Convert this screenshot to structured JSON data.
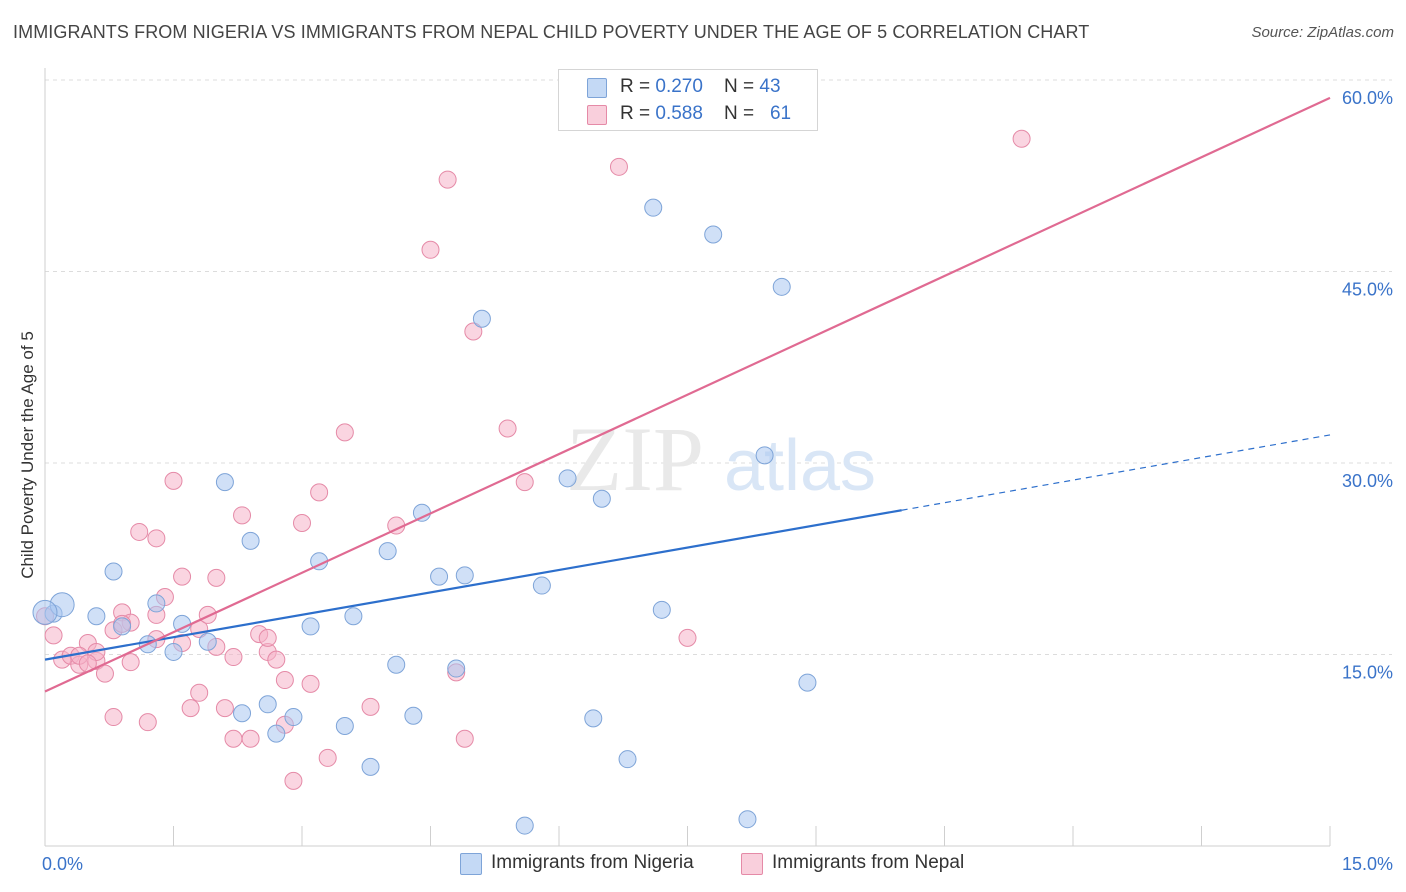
{
  "title": "IMMIGRANTS FROM NIGERIA VS IMMIGRANTS FROM NEPAL CHILD POVERTY UNDER THE AGE OF 5 CORRELATION CHART",
  "source": "Source: ZipAtlas.com",
  "watermark": {
    "zip": "ZIP",
    "atlas": "atlas"
  },
  "legend": {
    "rows": [
      {
        "r_label": "R = ",
        "r_value": "0.270",
        "n_label": "N = ",
        "n_value": "43",
        "color": "#a9c7f0"
      },
      {
        "r_label": "R = ",
        "r_value": "0.588",
        "n_label": "N = ",
        "n_value": "61",
        "color": "#f6b3c8"
      }
    ]
  },
  "chart_data": {
    "type": "scatter",
    "title": "IMMIGRANTS FROM NIGERIA VS IMMIGRANTS FROM NEPAL CHILD POVERTY UNDER THE AGE OF 5 CORRELATION CHART",
    "xlabel": "",
    "ylabel": "Child Poverty Under the Age of 5",
    "xlim": [
      0,
      15
    ],
    "ylim": [
      0,
      60
    ],
    "x_tick_labels": [
      "0.0%",
      "15.0%"
    ],
    "y_ticks": [
      15,
      30,
      45,
      60
    ],
    "y_tick_labels": [
      "15.0%",
      "30.0%",
      "45.0%",
      "60.0%"
    ],
    "grid": "horizontal dashed",
    "legend_position": "top-center",
    "series": [
      {
        "name": "Immigrants from Nigeria",
        "color": "#a9c7f0",
        "stroke": "#7ea4d8",
        "trend_color": "#2d6fcc",
        "trend": {
          "x0": 0.0,
          "y0": 14.6,
          "x1": 10.0,
          "y1": 26.3,
          "dashed_to_x": 15.0,
          "dashed_to_y": 32.2
        },
        "points": [
          [
            0.1,
            18.2
          ],
          [
            0.2,
            18.9
          ],
          [
            0.6,
            18.0
          ],
          [
            0.8,
            21.5
          ],
          [
            0.9,
            17.2
          ],
          [
            1.2,
            15.8
          ],
          [
            1.3,
            19.0
          ],
          [
            1.5,
            15.2
          ],
          [
            1.6,
            17.4
          ],
          [
            1.9,
            16.0
          ],
          [
            2.1,
            28.5
          ],
          [
            2.3,
            10.4
          ],
          [
            2.4,
            23.9
          ],
          [
            2.6,
            11.1
          ],
          [
            2.7,
            8.8
          ],
          [
            2.9,
            10.1
          ],
          [
            3.1,
            17.2
          ],
          [
            3.2,
            22.3
          ],
          [
            3.5,
            9.4
          ],
          [
            3.6,
            18.0
          ],
          [
            3.8,
            6.2
          ],
          [
            4.0,
            23.1
          ],
          [
            4.1,
            14.2
          ],
          [
            4.3,
            10.2
          ],
          [
            4.4,
            26.1
          ],
          [
            4.6,
            21.1
          ],
          [
            4.8,
            13.9
          ],
          [
            4.9,
            21.2
          ],
          [
            5.1,
            41.3
          ],
          [
            5.6,
            1.6
          ],
          [
            5.8,
            20.4
          ],
          [
            6.1,
            28.8
          ],
          [
            6.4,
            10.0
          ],
          [
            6.5,
            27.2
          ],
          [
            6.8,
            6.8
          ],
          [
            7.1,
            50.0
          ],
          [
            7.2,
            18.5
          ],
          [
            7.8,
            47.9
          ],
          [
            8.2,
            2.1
          ],
          [
            8.4,
            30.6
          ],
          [
            8.6,
            43.8
          ],
          [
            8.9,
            12.8
          ],
          [
            0.0,
            18.3
          ]
        ]
      },
      {
        "name": "Immigrants from Nepal",
        "color": "#f6b3c8",
        "stroke": "#e58aa7",
        "trend_color": "#e06a92",
        "trend": {
          "x0": 0.0,
          "y0": 12.1,
          "x1": 15.0,
          "y1": 58.6
        },
        "points": [
          [
            0.0,
            18.0
          ],
          [
            0.1,
            16.5
          ],
          [
            0.2,
            14.6
          ],
          [
            0.3,
            14.9
          ],
          [
            0.4,
            14.2
          ],
          [
            0.5,
            15.9
          ],
          [
            0.6,
            14.5
          ],
          [
            0.6,
            15.2
          ],
          [
            0.7,
            13.5
          ],
          [
            0.8,
            16.9
          ],
          [
            0.8,
            10.1
          ],
          [
            0.9,
            18.3
          ],
          [
            1.0,
            17.5
          ],
          [
            1.0,
            14.4
          ],
          [
            1.1,
            24.6
          ],
          [
            1.2,
            9.7
          ],
          [
            1.3,
            24.1
          ],
          [
            1.3,
            18.1
          ],
          [
            1.4,
            19.5
          ],
          [
            1.5,
            28.6
          ],
          [
            1.6,
            15.9
          ],
          [
            1.6,
            21.1
          ],
          [
            1.7,
            10.8
          ],
          [
            1.8,
            17.0
          ],
          [
            1.8,
            12.0
          ],
          [
            1.9,
            18.1
          ],
          [
            2.0,
            15.6
          ],
          [
            2.0,
            21.0
          ],
          [
            2.1,
            10.8
          ],
          [
            2.2,
            8.4
          ],
          [
            2.2,
            14.8
          ],
          [
            2.3,
            25.9
          ],
          [
            2.4,
            8.4
          ],
          [
            2.5,
            16.6
          ],
          [
            2.6,
            15.2
          ],
          [
            2.6,
            16.3
          ],
          [
            2.7,
            14.6
          ],
          [
            2.8,
            13.0
          ],
          [
            2.8,
            9.5
          ],
          [
            2.9,
            5.1
          ],
          [
            3.0,
            25.3
          ],
          [
            3.1,
            12.7
          ],
          [
            3.2,
            27.7
          ],
          [
            3.3,
            6.9
          ],
          [
            3.5,
            32.4
          ],
          [
            3.8,
            10.9
          ],
          [
            4.1,
            25.1
          ],
          [
            4.5,
            46.7
          ],
          [
            4.7,
            52.2
          ],
          [
            4.8,
            13.6
          ],
          [
            4.9,
            8.4
          ],
          [
            5.0,
            40.3
          ],
          [
            5.4,
            32.7
          ],
          [
            5.6,
            28.5
          ],
          [
            6.7,
            53.2
          ],
          [
            7.5,
            16.3
          ],
          [
            11.4,
            55.4
          ],
          [
            0.4,
            14.9
          ],
          [
            0.5,
            14.3
          ],
          [
            0.9,
            17.4
          ],
          [
            1.3,
            16.2
          ]
        ]
      }
    ]
  }
}
